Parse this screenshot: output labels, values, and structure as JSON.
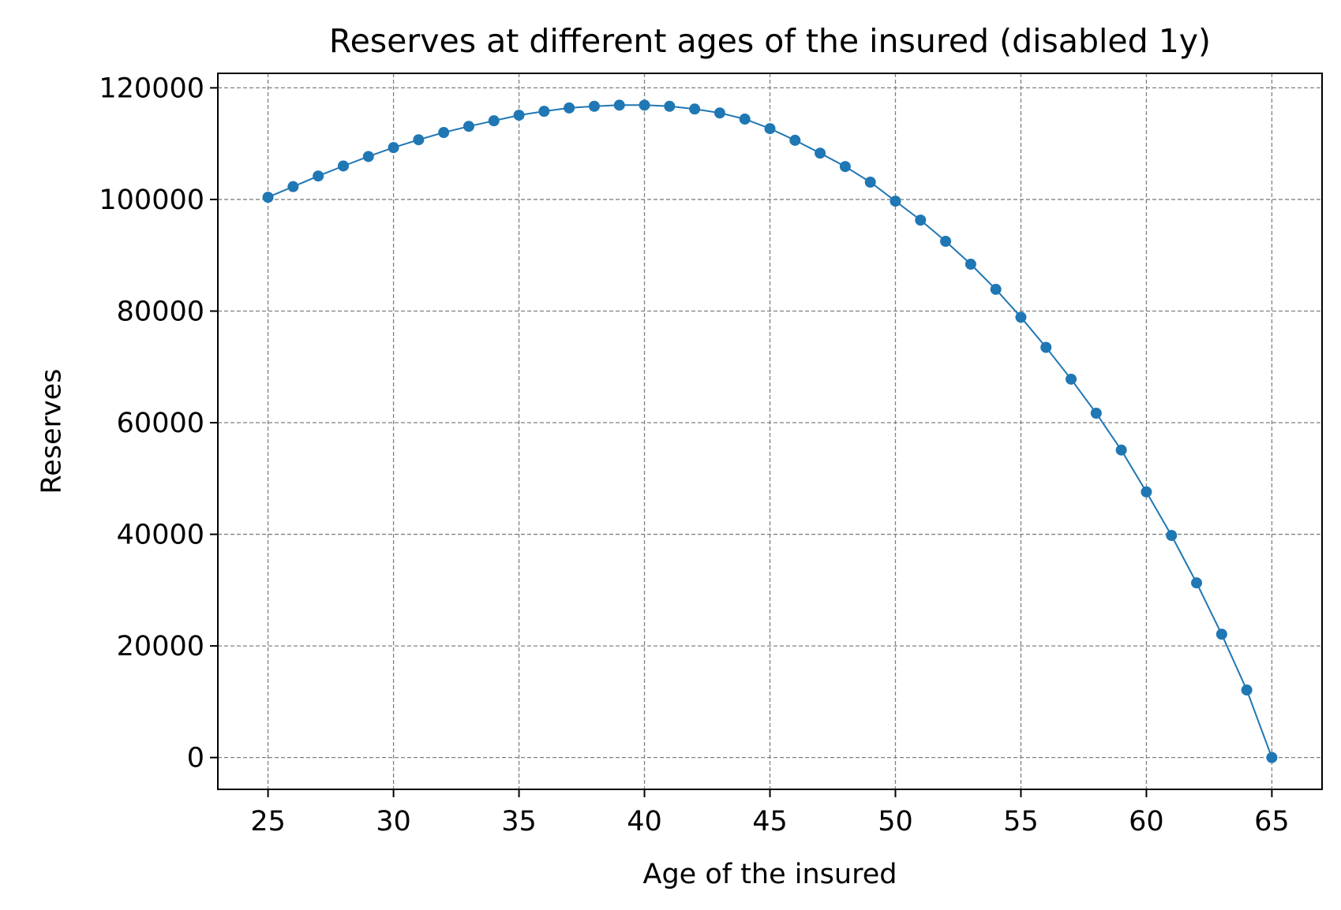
{
  "chart_data": {
    "type": "line",
    "title": "Reserves at different ages of the insured (disabled 1y)",
    "xlabel": "Age of the insured",
    "ylabel": "Reserves",
    "xlim": [
      23,
      67
    ],
    "ylim": [
      -5700,
      122600
    ],
    "xticks": [
      25,
      30,
      35,
      40,
      45,
      50,
      55,
      60,
      65
    ],
    "yticks": [
      0,
      20000,
      40000,
      60000,
      80000,
      100000,
      120000
    ],
    "grid": true,
    "legend": "none",
    "series": [
      {
        "color": "#1f77b4",
        "marker": "circle",
        "x": [
          25,
          26,
          27,
          28,
          29,
          30,
          31,
          32,
          33,
          34,
          35,
          36,
          37,
          38,
          39,
          40,
          41,
          42,
          43,
          44,
          45,
          46,
          47,
          48,
          49,
          50,
          51,
          52,
          53,
          54,
          55,
          56,
          57,
          58,
          59,
          60,
          61,
          62,
          63,
          64,
          65
        ],
        "values": [
          100400,
          102300,
          104200,
          106000,
          107700,
          109300,
          110700,
          112000,
          113100,
          114100,
          115100,
          115800,
          116400,
          116700,
          116900,
          116900,
          116700,
          116200,
          115500,
          114400,
          112700,
          110600,
          108300,
          105900,
          103100,
          99700,
          96300,
          92500,
          88400,
          83900,
          78900,
          73500,
          67800,
          61700,
          55100,
          47600,
          39800,
          31300,
          22100,
          12100,
          0
        ]
      }
    ]
  }
}
